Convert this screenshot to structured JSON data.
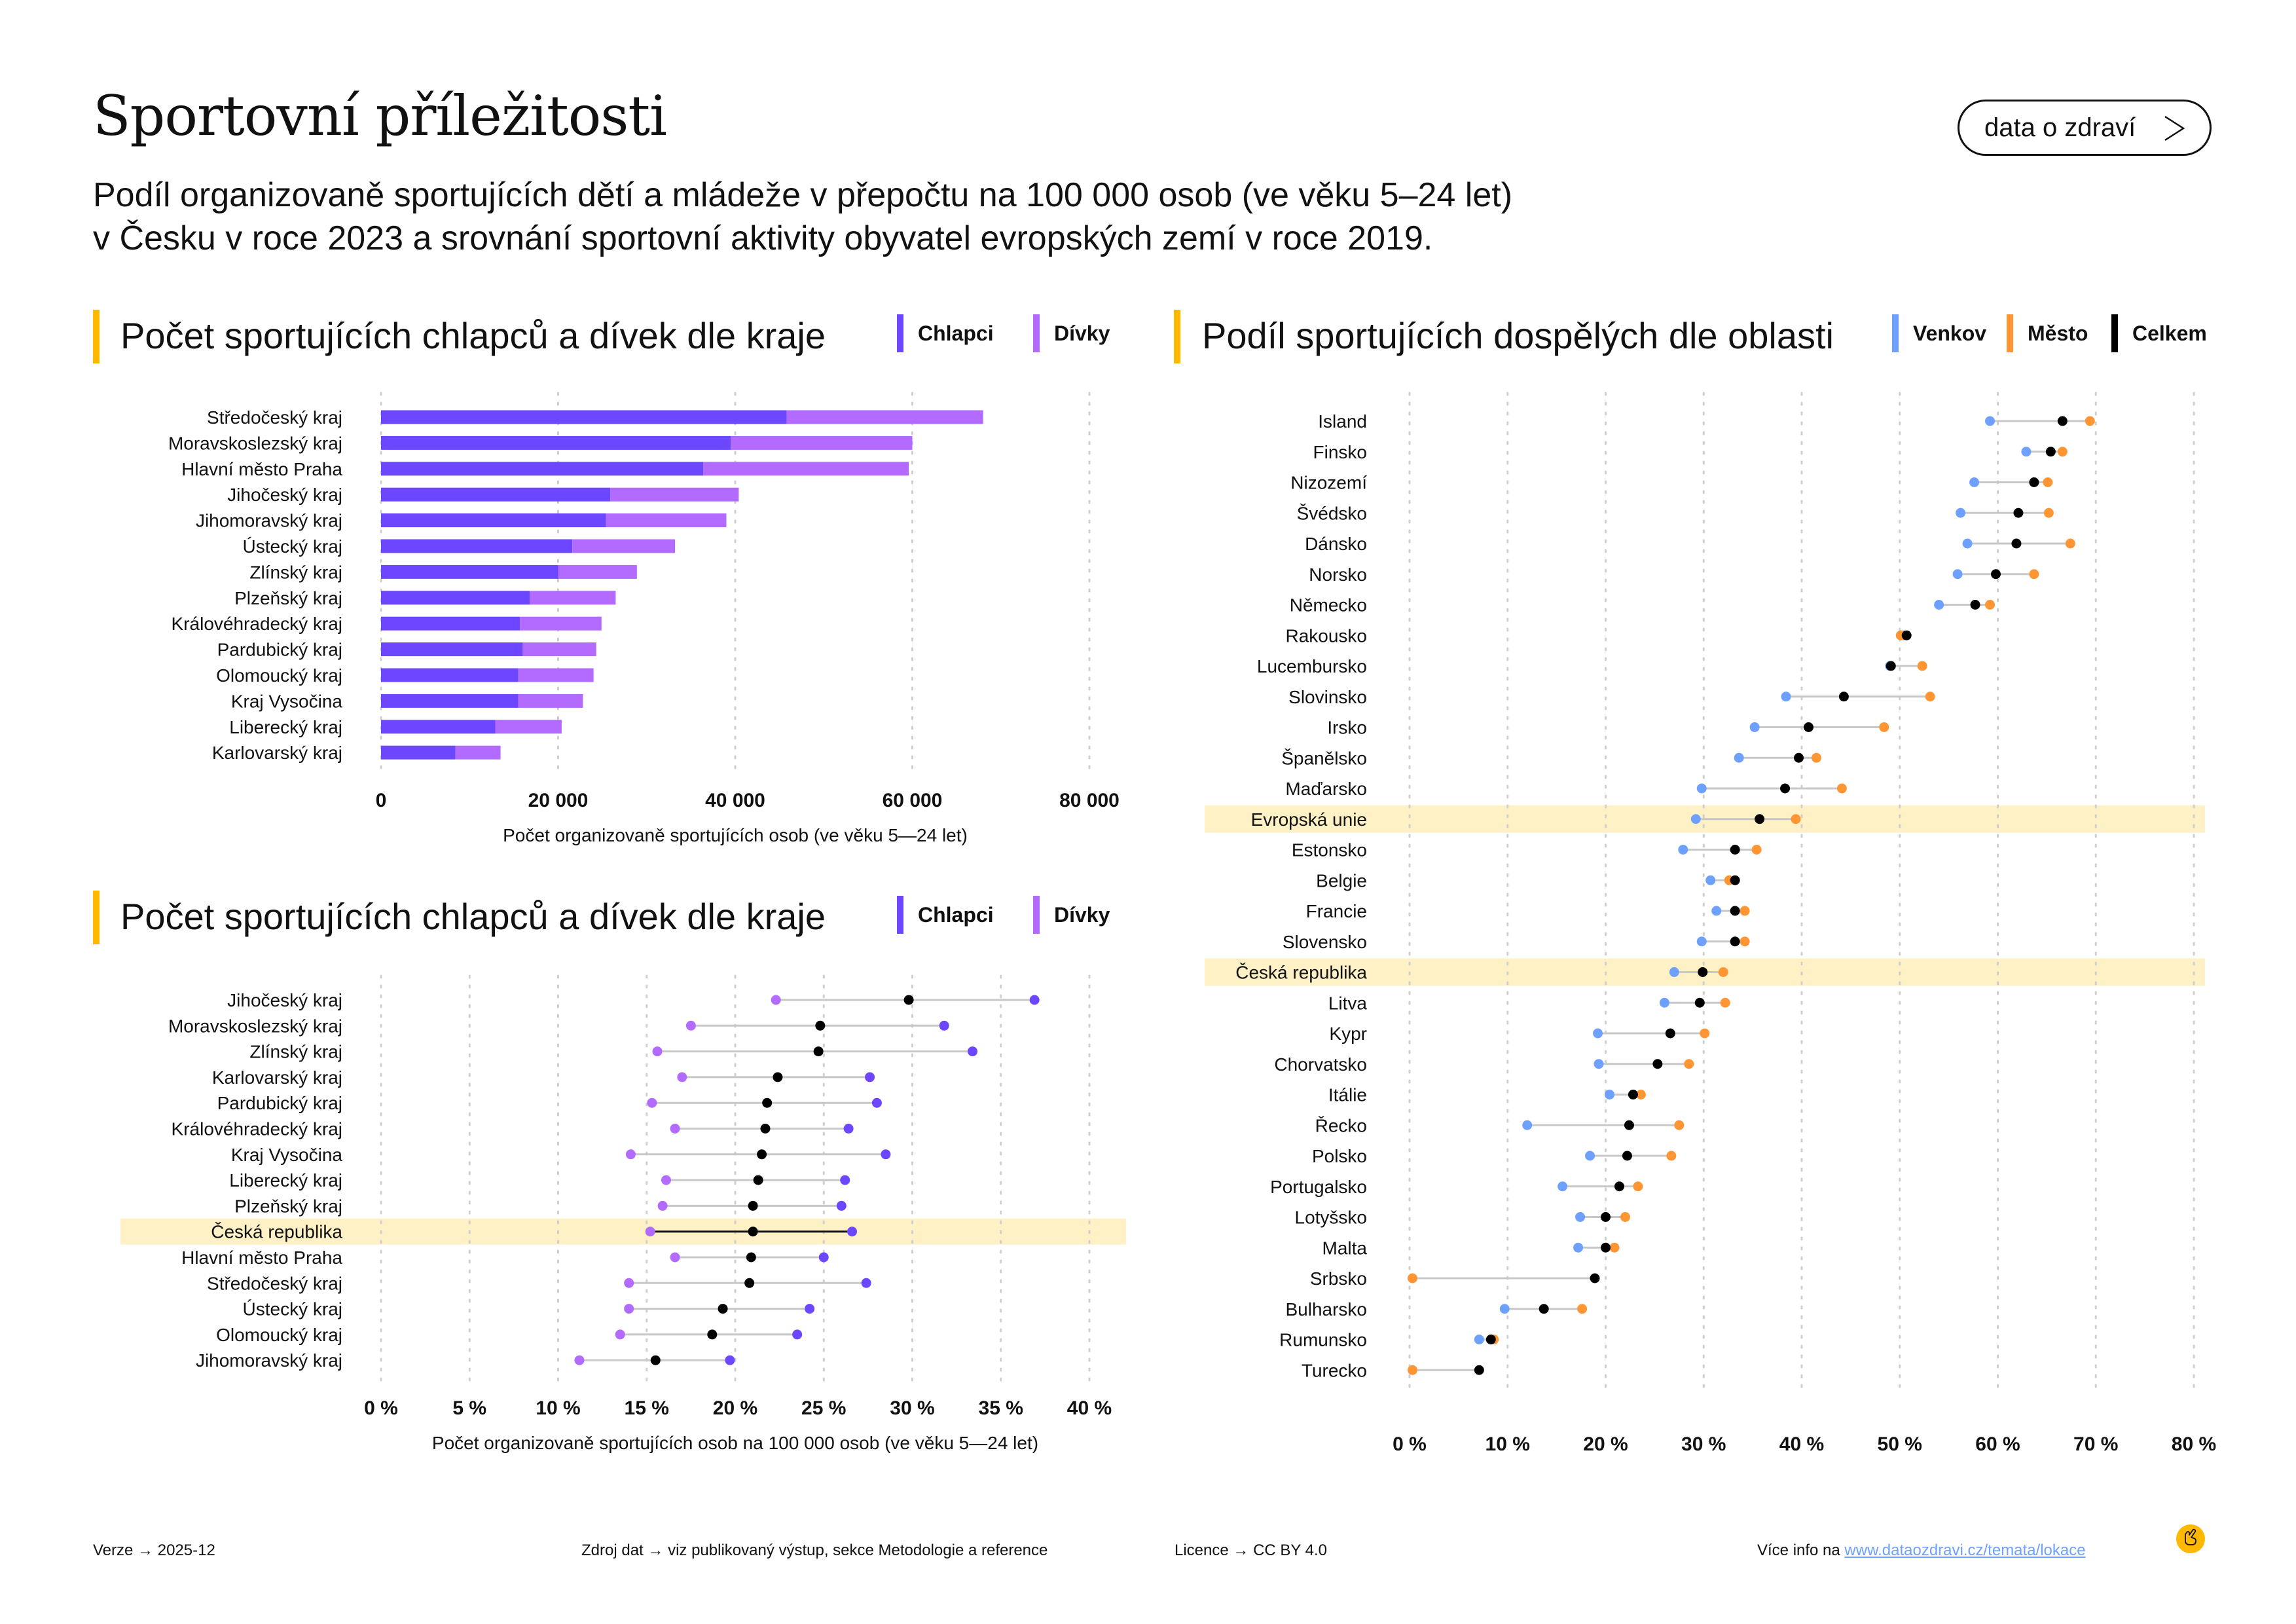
{
  "header": {
    "title": "Sportovní příležitosti",
    "button_label": "data o zdraví",
    "subtitle_line1": "Podíl organizovaně sportujících dětí a mládeže v přepočtu na 100 000 osob (ve věku 5–24 let)",
    "subtitle_line2": "v Česku v roce 2023 a srovnání sportovní aktivity obyvatel evropských zemí v roce 2019."
  },
  "colors": {
    "accent": "#ffb800",
    "boys": "#6c47ff",
    "girls": "#b36bff",
    "rural": "#6ea0ff",
    "urban": "#ff9633",
    "total": "#000000",
    "highlight": "#fff1c6"
  },
  "sections": {
    "left_top": {
      "title": "Počet sportujících chlapců a dívek dle kraje",
      "legend": [
        "Chlapci",
        "Dívky"
      ]
    },
    "left_bottom": {
      "title": "Počet sportujících chlapců a dívek dle kraje",
      "legend": [
        "Chlapci",
        "Dívky"
      ]
    },
    "right": {
      "title": "Podíl sportujících dospělých dle oblasti",
      "legend": [
        "Venkov",
        "Město",
        "Celkem"
      ]
    }
  },
  "chart_data": [
    {
      "type": "bar",
      "stacked": true,
      "orientation": "horizontal",
      "title": "Počet sportujících chlapců a dívek dle kraje",
      "xlabel": "Počet organizovaně sportujících osob (ve věku 5—24 let)",
      "ylabel": "",
      "xlim": [
        0,
        80000
      ],
      "xticks": [
        0,
        20000,
        40000,
        60000,
        80000
      ],
      "xtick_labels": [
        "0",
        "20 000",
        "40 000",
        "60 000",
        "80 000"
      ],
      "grid": true,
      "legend_position": "top-right",
      "categories": [
        "Středočeský kraj",
        "Moravskoslezský kraj",
        "Hlavní město Praha",
        "Jihočeský kraj",
        "Jihomoravský kraj",
        "Ústecký kraj",
        "Zlínský kraj",
        "Plzeňský kraj",
        "Královéhradecký kraj",
        "Pardubický kraj",
        "Olomoucký kraj",
        "Kraj Vysočina",
        "Liberecký kraj",
        "Karlovarský kraj"
      ],
      "series": [
        {
          "name": "Chlapci",
          "values": [
            45800,
            39500,
            36400,
            25900,
            25400,
            21600,
            20000,
            16800,
            15700,
            16000,
            15500,
            15500,
            12900,
            8400
          ]
        },
        {
          "name": "Dívky",
          "values": [
            22200,
            20500,
            23200,
            14500,
            13600,
            11600,
            8900,
            9700,
            9200,
            8300,
            8500,
            7300,
            7500,
            5100
          ]
        }
      ]
    },
    {
      "type": "scatter",
      "variant": "dumbbell",
      "title": "Počet sportujících chlapců a dívek dle kraje",
      "xlabel": "Počet organizovaně sportujících osob na 100 000 osob (ve věku 5—24 let)",
      "ylabel": "",
      "xlim": [
        0,
        40
      ],
      "xticks": [
        0,
        5,
        10,
        15,
        20,
        25,
        30,
        35,
        40
      ],
      "xtick_labels": [
        "0 %",
        "5 %",
        "10 %",
        "15 %",
        "20 %",
        "25 %",
        "30 %",
        "35 %",
        "40 %"
      ],
      "grid": true,
      "legend_position": "top-right",
      "highlight": "Česká republika",
      "categories": [
        "Jihočeský kraj",
        "Moravskoslezský kraj",
        "Zlínský kraj",
        "Karlovarský kraj",
        "Pardubický kraj",
        "Královéhradecký kraj",
        "Kraj Vysočina",
        "Liberecký kraj",
        "Plzeňský kraj",
        "Česká republika",
        "Hlavní město Praha",
        "Středočeský kraj",
        "Ústecký kraj",
        "Olomoucký kraj",
        "Jihomoravský kraj"
      ],
      "series": [
        {
          "name": "Dívky",
          "values": [
            22.3,
            17.5,
            15.6,
            17.0,
            15.3,
            16.6,
            14.1,
            16.1,
            15.9,
            15.2,
            16.6,
            14.0,
            14.0,
            13.5,
            11.2
          ]
        },
        {
          "name": "Celkem",
          "values": [
            29.8,
            24.8,
            24.7,
            22.4,
            21.8,
            21.7,
            21.5,
            21.3,
            21.0,
            21.0,
            20.9,
            20.8,
            19.3,
            18.7,
            15.5
          ]
        },
        {
          "name": "Chlapci",
          "values": [
            36.9,
            31.8,
            33.4,
            27.6,
            28.0,
            26.4,
            28.5,
            26.2,
            26.0,
            26.6,
            25.0,
            27.4,
            24.2,
            23.5,
            19.7
          ]
        }
      ]
    },
    {
      "type": "scatter",
      "variant": "dumbbell",
      "title": "Podíl sportujících dospělých dle oblasti",
      "xlabel": "",
      "ylabel": "",
      "xlim": [
        0,
        80
      ],
      "xticks": [
        0,
        10,
        20,
        30,
        40,
        50,
        60,
        70,
        80
      ],
      "xtick_labels": [
        "0 %",
        "10 %",
        "20 %",
        "30 %",
        "40 %",
        "50 %",
        "60 %",
        "70 %",
        "80 %"
      ],
      "grid": true,
      "legend_position": "top-right",
      "highlight": [
        "Evropská unie",
        "Česká republika"
      ],
      "categories": [
        "Island",
        "Finsko",
        "Nizozemí",
        "Švédsko",
        "Dánsko",
        "Norsko",
        "Německo",
        "Rakousko",
        "Lucembursko",
        "Slovinsko",
        "Irsko",
        "Španělsko",
        "Maďarsko",
        "Evropská unie",
        "Estonsko",
        "Belgie",
        "Francie",
        "Slovensko",
        "Česká republika",
        "Litva",
        "Kypr",
        "Chorvatsko",
        "Itálie",
        "Řecko",
        "Polsko",
        "Portugalsko",
        "Lotyšsko",
        "Malta",
        "Srbsko",
        "Bulharsko",
        "Rumunsko",
        "Turecko"
      ],
      "series": [
        {
          "name": "Venkov",
          "values": [
            59.2,
            62.9,
            57.6,
            56.2,
            56.9,
            55.9,
            54.0,
            50.4,
            49.0,
            38.4,
            35.2,
            33.6,
            29.8,
            29.2,
            27.9,
            30.7,
            31.3,
            29.8,
            27.0,
            26.0,
            19.2,
            19.3,
            20.4,
            12.0,
            18.4,
            15.6,
            17.4,
            17.2,
            null,
            9.7,
            7.1,
            null
          ]
        },
        {
          "name": "Město",
          "values": [
            69.4,
            66.6,
            65.1,
            65.2,
            67.4,
            63.7,
            59.2,
            50.1,
            52.3,
            53.1,
            48.4,
            41.5,
            44.1,
            39.4,
            35.4,
            32.6,
            34.2,
            34.2,
            32.0,
            32.2,
            30.1,
            28.5,
            23.6,
            27.5,
            26.7,
            23.3,
            22.0,
            20.9,
            0.3,
            17.6,
            8.6,
            0.3
          ]
        },
        {
          "name": "Celkem",
          "values": [
            66.6,
            65.4,
            63.7,
            62.1,
            61.9,
            59.8,
            57.7,
            50.7,
            49.1,
            44.3,
            40.7,
            39.7,
            38.3,
            35.7,
            33.2,
            33.2,
            33.2,
            33.2,
            29.9,
            29.6,
            26.6,
            25.3,
            22.8,
            22.4,
            22.2,
            21.4,
            20.0,
            20.0,
            18.9,
            13.7,
            8.3,
            7.1
          ]
        }
      ]
    }
  ],
  "footer": {
    "version_label": "Verze",
    "version_value": "2025-12",
    "source_label": "Zdroj dat",
    "source_value": "viz publikovaný výstup, sekce Metodologie a reference",
    "license_label": "Licence",
    "license_value": "CC BY 4.0",
    "more_info_label": "Více info na",
    "more_info_link": "www.dataozdravi.cz/temata/lokace",
    "arrow": "→"
  },
  "icons": {
    "button_icon": "chevron-right-icon",
    "footer_logo": "pointing-hand-icon"
  }
}
